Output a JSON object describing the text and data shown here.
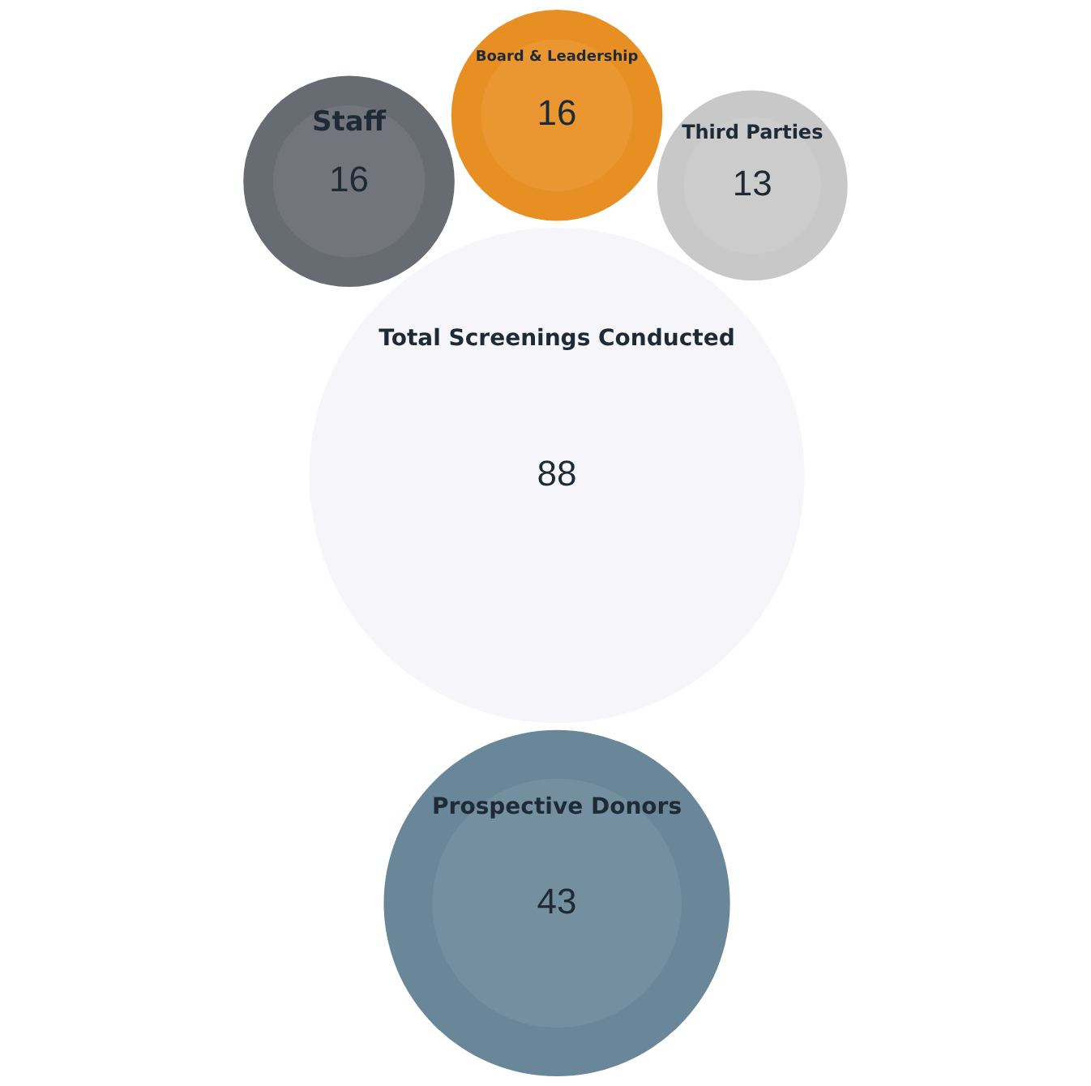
{
  "chart_data": {
    "type": "other",
    "categories": [
      "Third Parties",
      "Board & Leadership",
      "Total Screenings Conducted",
      "Prospective Donors",
      "Staff"
    ],
    "values": [
      13,
      16,
      88,
      43,
      16
    ],
    "colors": [
      "#c8c8c8",
      "#e88f23",
      "#f5f5fa",
      "#6a8799",
      "#676c72"
    ],
    "data_labels": true,
    "legend": false
  }
}
